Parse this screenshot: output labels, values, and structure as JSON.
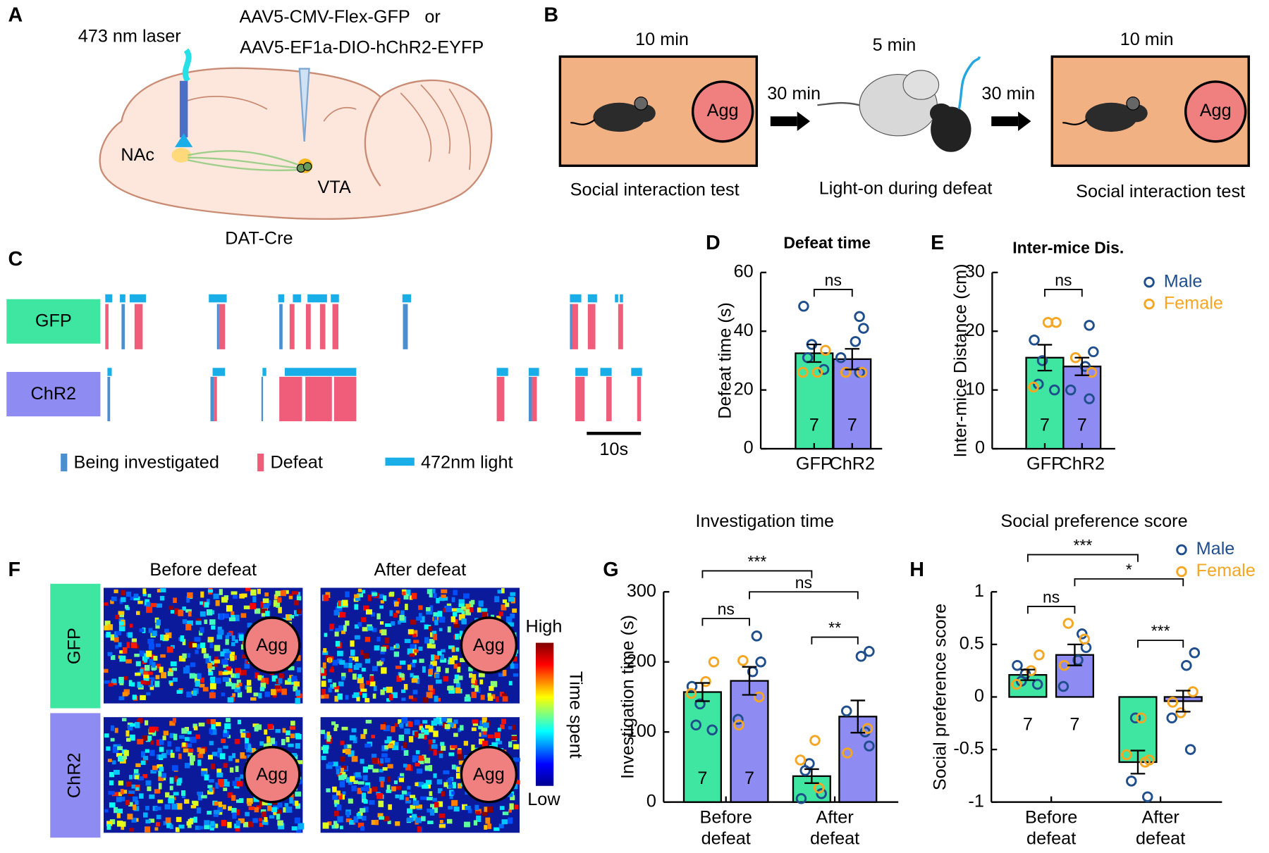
{
  "panel_labels": [
    "A",
    "B",
    "C",
    "D",
    "E",
    "F",
    "G",
    "H"
  ],
  "panel_a": {
    "laser": "473 nm laser",
    "virus_1": "AAV5-CMV-Flex-GFP   or",
    "virus_2": "AAV5-EF1a-DIO-hChR2-EYFP",
    "nac": "NAc",
    "vta": "VTA",
    "mouse_line": "DAT-Cre"
  },
  "panel_b": {
    "durations": [
      "10 min",
      "5 min",
      "10 min"
    ],
    "intervals": [
      "30 min",
      "30 min"
    ],
    "steps": [
      "Social interaction test",
      "Light-on during defeat",
      "Social interaction test"
    ],
    "target": "Agg"
  },
  "panel_c": {
    "groups": [
      "GFP",
      "ChR2"
    ],
    "group_colors": [
      "#3fe6a2",
      "#8e8bf2"
    ],
    "legend": [
      "Being investigated",
      "Defeat",
      "472nm light"
    ],
    "legend_colors": [
      "#4a8fd0",
      "#ef5d7a",
      "#1aaee8"
    ],
    "scalebar": {
      "value": 10,
      "label": "10s"
    },
    "rows": [
      {
        "light": [
          [
            0.3,
            1.6
          ],
          [
            3.0,
            4.0
          ],
          [
            4.8,
            7.8
          ],
          [
            19.4,
            22.7
          ],
          [
            32.2,
            33.3
          ],
          [
            34.9,
            36.4
          ],
          [
            37.6,
            41.2
          ],
          [
            41.9,
            43.4
          ],
          [
            55.1,
            56.7
          ],
          [
            86.0,
            88.1
          ],
          [
            89.3,
            91.0
          ],
          [
            94.3,
            94.9
          ],
          [
            95.2,
            95.8
          ]
        ],
        "investigated": [
          [
            3.3,
            3.9
          ],
          [
            20.9,
            21.3
          ],
          [
            32.4,
            33.0
          ],
          [
            55.2,
            56.1
          ],
          [
            86.0,
            86.4
          ]
        ],
        "defeat": [
          [
            0.3,
            0.9
          ],
          [
            5.7,
            7.2
          ],
          [
            21.3,
            22.4
          ],
          [
            34.3,
            35.2
          ],
          [
            37.3,
            38.2
          ],
          [
            39.9,
            40.9
          ],
          [
            42.2,
            43.3
          ],
          [
            86.4,
            87.5
          ],
          [
            89.3,
            90.7
          ],
          [
            94.9,
            95.8
          ]
        ]
      },
      {
        "light": [
          [
            0.7,
            1.5
          ],
          [
            20.1,
            22.4
          ],
          [
            29.3,
            30.0
          ],
          [
            33.4,
            46.6
          ],
          [
            72.5,
            74.6
          ],
          [
            78.4,
            80.3
          ],
          [
            87.0,
            89.3
          ],
          [
            91.6,
            93.7
          ],
          [
            97.3,
            99.3
          ]
        ],
        "investigated": [
          [
            0.7,
            1.2
          ],
          [
            19.7,
            20.3
          ],
          [
            29.1,
            29.4
          ],
          [
            78.4,
            79.0
          ]
        ],
        "defeat": [
          [
            20.3,
            20.9
          ],
          [
            32.4,
            36.6
          ],
          [
            37.2,
            42.1
          ],
          [
            42.5,
            46.6
          ],
          [
            72.5,
            73.9
          ],
          [
            79.0,
            79.9
          ],
          [
            87.0,
            88.7
          ],
          [
            92.7,
            93.7
          ],
          [
            98.4,
            99.1
          ]
        ]
      }
    ]
  },
  "panel_f": {
    "columns": [
      "Before defeat",
      "After defeat"
    ],
    "rows": [
      "GFP",
      "ChR2"
    ],
    "target": "Agg",
    "colorbar": {
      "title": "Time spent",
      "high": "High",
      "low": "Low"
    }
  },
  "chart_data": [
    {
      "type": "bar",
      "title": "Defeat time",
      "ylabel": "Defeat time (s)",
      "categories": [
        "GFP",
        "ChR2"
      ],
      "values": [
        32.5,
        30.5
      ],
      "errors": [
        3,
        3.5
      ],
      "colors": [
        "#3fe6a2",
        "#8e8bf2"
      ],
      "n_labels": [
        "7",
        "7"
      ],
      "point_colors": [
        "#1f4e8c",
        "#f5a623"
      ],
      "points_male": [
        [
          48.5,
          35.5,
          31,
          27
        ],
        [
          45,
          41,
          36.5,
          31,
          26
        ]
      ],
      "points_female": [
        [
          33.5,
          26,
          26
        ],
        [
          26,
          26
        ]
      ],
      "ylim": [
        0,
        60
      ],
      "yticks": [
        0,
        20,
        40,
        60
      ],
      "comparisons": [
        {
          "label": "ns",
          "from": 0,
          "to": 1
        }
      ]
    },
    {
      "type": "bar",
      "title": "Inter-mice Dis.",
      "ylabel": "Inter-mice Distance (cm)",
      "categories": [
        "GFP",
        "ChR2"
      ],
      "values": [
        15.5,
        14
      ],
      "errors": [
        2.2,
        1.5
      ],
      "colors": [
        "#3fe6a2",
        "#8e8bf2"
      ],
      "n_labels": [
        "7",
        "7"
      ],
      "point_colors": [
        "#1f4e8c",
        "#f5a623"
      ],
      "legend": [
        "Male",
        "Female"
      ],
      "points_male": [
        [
          18.5,
          15,
          11,
          10
        ],
        [
          21,
          16.5,
          14,
          10,
          8.5
        ]
      ],
      "points_female": [
        [
          21.5,
          21.5,
          10.5
        ],
        [
          15.5,
          13
        ]
      ],
      "ylim": [
        0,
        30
      ],
      "yticks": [
        0,
        10,
        20,
        30
      ],
      "comparisons": [
        {
          "label": "ns",
          "from": 0,
          "to": 1
        }
      ]
    },
    {
      "type": "grouped_bar",
      "title": "Investigation time",
      "ylabel": "Investigation time (s)",
      "categories": [
        "Before defeat",
        "After defeat"
      ],
      "point_colors": [
        "#1f4e8c",
        "#f5a623"
      ],
      "series": [
        {
          "color": "#3fe6a2",
          "values": [
            157,
            37
          ],
          "errors": [
            13,
            10
          ],
          "n_labels": [
            "7",
            null
          ],
          "points_male": [
            [
              165,
              140,
              110,
              103
            ],
            [
              55,
              45,
              12,
              5
            ]
          ],
          "points_female": [
            [
              200,
              172,
              155
            ],
            [
              88,
              60,
              20
            ]
          ]
        },
        {
          "color": "#8e8bf2",
          "values": [
            173,
            122
          ],
          "errors": [
            20,
            23
          ],
          "n_labels": [
            "7",
            null
          ],
          "points_male": [
            [
              237,
              200,
              186,
              118
            ],
            [
              215,
              208,
              130,
              100,
              80
            ]
          ],
          "points_female": [
            [
              202,
              150,
              110
            ],
            [
              105,
              70
            ]
          ]
        }
      ],
      "ylim": [
        0,
        300
      ],
      "yticks": [
        0,
        100,
        200,
        300
      ],
      "comparisons": [
        {
          "label": "***",
          "from": 0,
          "to": 2
        },
        {
          "label": "ns",
          "from": 0,
          "to": 1
        },
        {
          "label": "ns",
          "from": 1,
          "to": 3
        },
        {
          "label": "**",
          "from": 2,
          "to": 3
        }
      ]
    },
    {
      "type": "grouped_bar",
      "title": "Social preference score",
      "ylabel": "Social preference score",
      "categories": [
        "Before defeat",
        "After defeat"
      ],
      "point_colors": [
        "#1f4e8c",
        "#f5a623"
      ],
      "legend": [
        "Male",
        "Female"
      ],
      "series": [
        {
          "color": "#3fe6a2",
          "values": [
            0.21,
            -0.62
          ],
          "errors": [
            0.05,
            0.11
          ],
          "n_labels": [
            "7",
            null
          ],
          "points_male": [
            [
              0.3,
              0.22,
              0.15,
              0.12
            ],
            [
              -0.2,
              -0.8,
              -0.95
            ]
          ],
          "points_female": [
            [
              0.4,
              0.25,
              0.12
            ],
            [
              -0.2,
              -0.55,
              -0.62,
              -0.6
            ]
          ]
        },
        {
          "color": "#8e8bf2",
          "values": [
            0.4,
            -0.04
          ],
          "errors": [
            0.1,
            0.1
          ],
          "n_labels": [
            "7",
            null
          ],
          "points_male": [
            [
              0.6,
              0.47,
              0.35,
              0.1
            ],
            [
              0.42,
              0.3,
              -0.2,
              -0.5
            ]
          ],
          "points_female": [
            [
              0.7,
              0.55,
              0.3
            ],
            [
              0.05,
              -0.05,
              -0.15
            ]
          ]
        }
      ],
      "ylim": [
        -1,
        1
      ],
      "yticks": [
        -1,
        -0.5,
        0,
        0.5,
        1
      ],
      "comparisons": [
        {
          "label": "***",
          "from": 0,
          "to": 2
        },
        {
          "label": "ns",
          "from": 0,
          "to": 1
        },
        {
          "label": "*",
          "from": 1,
          "to": 3
        },
        {
          "label": "***",
          "from": 2,
          "to": 3
        }
      ]
    }
  ]
}
